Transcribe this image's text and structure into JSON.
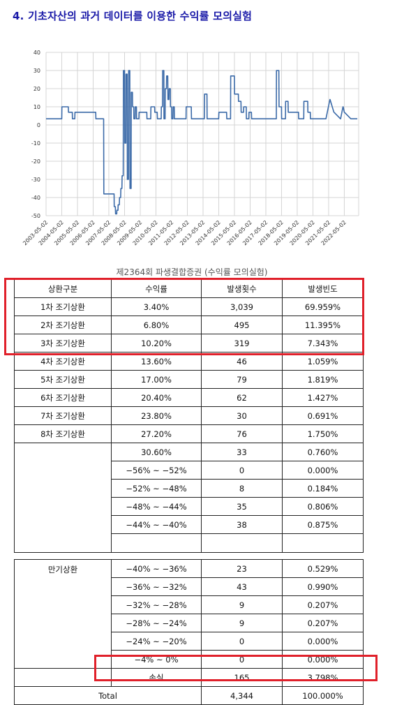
{
  "heading": "4. 기초자산의 과거 데이터를 이용한 수익률 모의실험",
  "caption": "제2364회 파생결합증권 (수익률 모의실험)",
  "table": {
    "headers": [
      "상환구분",
      "수익률",
      "발생횟수",
      "발생빈도"
    ],
    "early_rows": [
      {
        "label": "1차 조기상환",
        "rate": "3.40%",
        "count": "3,039",
        "freq": "69.959%"
      },
      {
        "label": "2차 조기상환",
        "rate": "6.80%",
        "count": "495",
        "freq": "11.395%"
      },
      {
        "label": "3차 조기상환",
        "rate": "10.20%",
        "count": "319",
        "freq": "7.343%"
      },
      {
        "label": "4차 조기상환",
        "rate": "13.60%",
        "count": "46",
        "freq": "1.059%"
      },
      {
        "label": "5차 조기상환",
        "rate": "17.00%",
        "count": "79",
        "freq": "1.819%"
      },
      {
        "label": "6차 조기상환",
        "rate": "20.40%",
        "count": "62",
        "freq": "1.427%"
      },
      {
        "label": "7차 조기상환",
        "rate": "23.80%",
        "count": "30",
        "freq": "0.691%"
      },
      {
        "label": "8차 조기상환",
        "rate": "27.20%",
        "count": "76",
        "freq": "1.750%"
      }
    ],
    "group1_rows": [
      {
        "rate": "30.60%",
        "count": "33",
        "freq": "0.760%"
      },
      {
        "rate": "−56% ~ −52%",
        "count": "0",
        "freq": "0.000%"
      },
      {
        "rate": "−52% ~ −48%",
        "count": "8",
        "freq": "0.184%"
      },
      {
        "rate": "−48% ~ −44%",
        "count": "35",
        "freq": "0.806%"
      },
      {
        "rate": "−44% ~ −40%",
        "count": "38",
        "freq": "0.875%"
      }
    ],
    "maturity_label": "만기상환",
    "group2_rows": [
      {
        "rate": "−40% ~ −36%",
        "count": "23",
        "freq": "0.529%"
      },
      {
        "rate": "−36% ~ −32%",
        "count": "43",
        "freq": "0.990%"
      },
      {
        "rate": "−32% ~ −28%",
        "count": "9",
        "freq": "0.207%"
      },
      {
        "rate": "−28% ~ −24%",
        "count": "9",
        "freq": "0.207%"
      },
      {
        "rate": "−24% ~ −20%",
        "count": "0",
        "freq": "0.000%"
      },
      {
        "rate": "−4% ~ 0%",
        "count": "0",
        "freq": "0.000%"
      },
      {
        "rate": "손실",
        "count": "165",
        "freq": "3.798%"
      }
    ],
    "total": {
      "label": "Total",
      "count": "4,344",
      "freq": "100.000%"
    }
  },
  "chart_data": {
    "type": "line",
    "ylim": [
      -50,
      40
    ],
    "yticks": [
      "40",
      "30",
      "20",
      "10",
      "0",
      "-10",
      "-20",
      "-30",
      "-40",
      "-50"
    ],
    "xticks": [
      "2003-05-02",
      "2004-05-02",
      "2005-05-02",
      "2006-05-02",
      "2007-05-02",
      "2008-05-02",
      "2009-05-02",
      "2010-05-02",
      "2011-05-02",
      "2012-05-02",
      "2013-05-02",
      "2014-05-02",
      "2015-05-02",
      "2016-05-02",
      "2017-05-02",
      "2018-05-02",
      "2019-05-02",
      "2020-05-02",
      "2021-05-02",
      "2022-05-02"
    ],
    "grid": true,
    "line_color": "#3b6aa8",
    "series": [
      {
        "x": [
          "2003-05-02",
          "2004-05-02",
          "2004-05-05",
          "2004-10-01",
          "2004-10-05",
          "2005-01-01",
          "2005-01-05",
          "2005-03-01",
          "2005-03-05",
          "2006-07-01",
          "2006-07-05",
          "2007-01-01",
          "2007-01-05",
          "2007-09-01",
          "2007-09-05",
          "2007-10-01",
          "2007-10-05",
          "2007-11-01",
          "2007-11-05",
          "2007-12-01",
          "2007-12-05",
          "2008-01-01",
          "2008-01-05",
          "2008-02-01",
          "2008-02-05",
          "2008-03-01",
          "2008-03-05",
          "2008-04-01",
          "2008-04-05",
          "2008-05-01",
          "2008-05-05",
          "2008-06-01",
          "2008-06-05",
          "2008-07-01",
          "2008-07-05",
          "2008-08-01",
          "2008-08-05",
          "2008-09-01",
          "2008-09-05",
          "2008-10-01",
          "2008-10-05",
          "2008-11-01",
          "2008-11-05",
          "2008-12-01",
          "2008-12-05",
          "2009-01-01",
          "2009-01-05",
          "2009-02-01",
          "2009-02-05",
          "2009-04-01",
          "2009-04-05",
          "2009-10-01",
          "2009-10-05",
          "2010-01-01",
          "2010-01-05",
          "2010-04-01",
          "2010-04-05",
          "2010-06-01",
          "2010-06-05",
          "2010-09-01",
          "2010-09-05",
          "2010-10-01",
          "2010-10-05",
          "2010-11-01",
          "2010-11-05",
          "2010-12-01",
          "2010-12-05",
          "2011-01-01",
          "2011-01-05",
          "2011-02-01",
          "2011-02-05",
          "2011-03-01",
          "2011-03-05",
          "2011-04-01",
          "2011-04-05",
          "2011-05-01",
          "2011-05-05",
          "2011-06-01",
          "2011-06-05",
          "2011-07-01",
          "2011-07-05",
          "2012-04-01",
          "2012-04-05",
          "2012-08-01",
          "2012-08-05",
          "2013-06-01",
          "2013-06-05",
          "2013-08-01",
          "2013-08-05",
          "2014-05-01",
          "2014-05-05",
          "2014-11-01",
          "2014-11-05",
          "2015-02-01",
          "2015-02-05",
          "2015-05-01",
          "2015-05-05",
          "2015-08-01",
          "2015-08-05",
          "2015-10-01",
          "2015-10-05",
          "2015-12-01",
          "2015-12-05",
          "2016-02-01",
          "2016-02-05",
          "2016-04-01",
          "2016-04-05",
          "2016-06-01",
          "2016-06-05",
          "2018-01-01",
          "2018-01-05",
          "2018-03-01",
          "2018-03-05",
          "2018-05-01",
          "2018-05-05",
          "2018-08-01",
          "2018-08-05",
          "2018-10-01",
          "2018-10-05",
          "2019-06-01",
          "2019-06-05",
          "2019-10-01",
          "2019-10-05",
          "2020-01-01",
          "2020-01-05",
          "2020-03-01",
          "2020-03-05",
          "2021-03-01",
          "2021-06-01",
          "2021-06-05",
          "2021-09-01",
          "2021-09-05",
          "2022-02-01",
          "2022-02-05",
          "2022-04-01",
          "2022-04-05",
          "2022-05-01",
          "2022-05-05",
          "2022-10-01",
          "2022-10-05",
          "2023-03-01"
        ],
        "y": [
          3.4,
          3.4,
          10,
          10,
          7,
          7,
          3.4,
          3.4,
          7,
          7,
          3.4,
          3.4,
          -38,
          -38,
          -45,
          -45,
          -49,
          -49,
          -47,
          -47,
          -44,
          -44,
          -40,
          -40,
          -35,
          -35,
          -28,
          -28,
          30,
          30,
          -10,
          -10,
          28,
          28,
          -30,
          -30,
          30,
          30,
          -35,
          -35,
          18,
          18,
          10,
          10,
          3.4,
          3.4,
          10,
          10,
          3.4,
          3.4,
          7,
          7,
          3.4,
          3.4,
          10,
          10,
          7,
          7,
          3.4,
          3.4,
          10,
          10,
          30,
          30,
          3.4,
          3.4,
          20,
          20,
          27,
          27,
          14,
          14,
          20,
          20,
          10,
          10,
          3.4,
          3.4,
          10,
          10,
          3.4,
          3.4,
          10,
          10,
          3.4,
          3.4,
          17,
          17,
          3.4,
          3.4,
          7,
          7,
          3.4,
          3.4,
          27,
          27,
          17,
          17,
          13,
          13,
          7,
          7,
          10,
          10,
          3.4,
          3.4,
          7,
          7,
          3.4,
          3.4,
          30,
          30,
          10,
          10,
          3.4,
          3.4,
          13,
          13,
          7,
          7,
          3.4,
          3.4,
          13,
          13,
          7,
          7,
          3.4,
          3.4,
          14,
          14,
          7,
          7,
          3.4,
          3.4,
          10,
          10,
          7,
          7,
          3.4,
          3.4,
          3.4
        ]
      }
    ]
  }
}
